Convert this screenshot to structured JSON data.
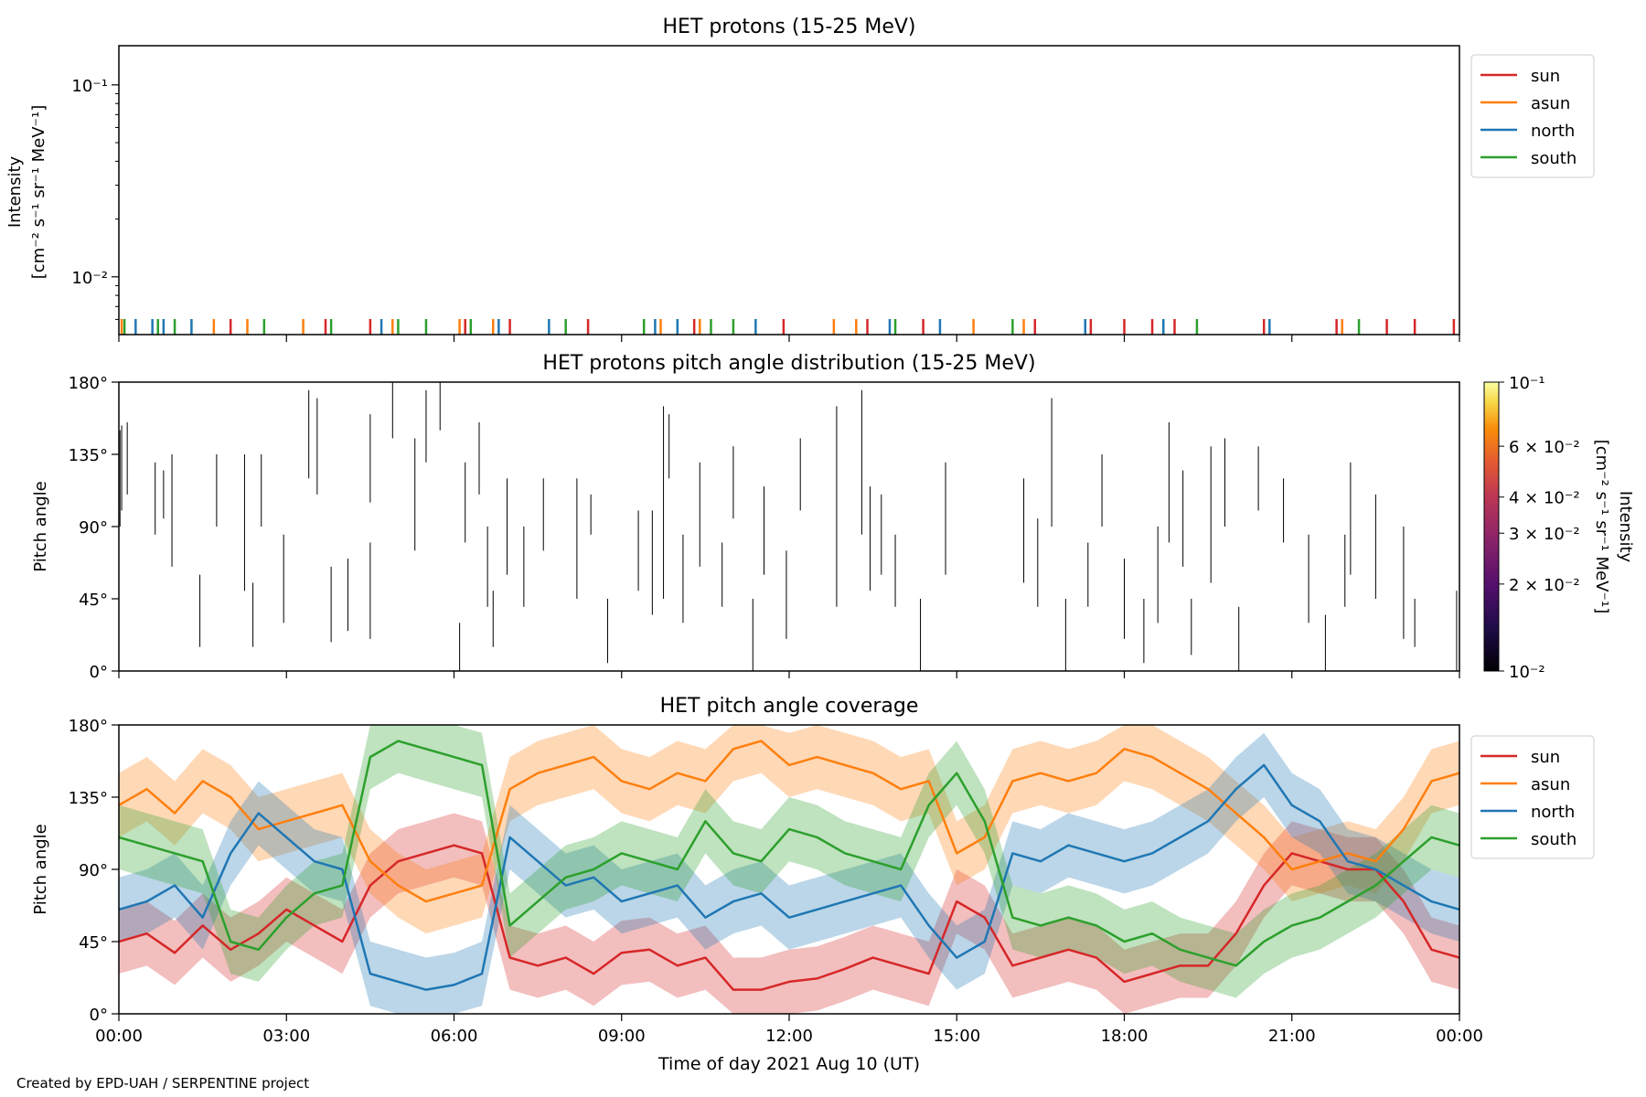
{
  "credit": "Created by EPD-UAH / SERPENTINE project",
  "colors": {
    "sun": "#d62728",
    "asun": "#ff7f0e",
    "north": "#1f77b4",
    "south": "#2ca02c"
  },
  "chart_data": [
    {
      "type": "line",
      "title": "HET protons (15-25 MeV)",
      "ylabel_line1": "Intensity",
      "ylabel_line2": "[cm⁻² s⁻¹ sr⁻¹ MeV⁻¹]",
      "yscale": "log",
      "ylim": [
        0.005,
        0.16
      ],
      "ytick_labels": [
        {
          "value": 0.01,
          "text": "10⁻²"
        },
        {
          "value": 0.1,
          "text": "10⁻¹"
        }
      ],
      "legend": [
        "sun",
        "asun",
        "north",
        "south"
      ],
      "legend_placement": "outside-right",
      "grid": false,
      "note": "sparse sampled intensities appearing as short spikes near the bottom of the axis",
      "spikes": {
        "sun": [
          2.0,
          3.7,
          4.5,
          6.2,
          7.0,
          8.4,
          10.3,
          11.9,
          13.4,
          14.4,
          16.4,
          17.4,
          18.0,
          18.5,
          18.9,
          20.5,
          21.8,
          22.7,
          23.2,
          23.9
        ],
        "asun": [
          0.05,
          1.7,
          2.3,
          3.3,
          4.9,
          6.1,
          6.7,
          9.7,
          10.4,
          12.8,
          13.2,
          15.3,
          16.2,
          21.9
        ],
        "north": [
          0.3,
          0.6,
          0.8,
          1.3,
          4.7,
          6.8,
          7.7,
          9.6,
          10.0,
          11.4,
          13.8,
          14.7,
          17.3,
          18.7,
          20.6
        ],
        "south": [
          0.1,
          0.7,
          1.0,
          2.6,
          3.8,
          5.0,
          5.5,
          6.3,
          8.0,
          9.4,
          10.6,
          11.0,
          13.9,
          16.0,
          19.3,
          22.2
        ]
      }
    },
    {
      "type": "heatmap",
      "title": "HET protons pitch angle distribution (15-25 MeV)",
      "ylabel": "Pitch angle",
      "ylim": [
        0,
        180
      ],
      "ytick_labels": [
        "0°",
        "45°",
        "90°",
        "135°",
        "180°"
      ],
      "colorbar": {
        "colormap": "inferno",
        "scale": "log",
        "range": [
          0.01,
          0.1
        ],
        "tick_labels": [
          {
            "value": 0.01,
            "text": "10⁻²"
          },
          {
            "value": 0.02,
            "text": "2 × 10⁻²"
          },
          {
            "value": 0.03,
            "text": "3 × 10⁻²"
          },
          {
            "value": 0.04,
            "text": "4 × 10⁻²"
          },
          {
            "value": 0.06,
            "text": "6 × 10⁻²"
          },
          {
            "value": 0.1,
            "text": "10⁻¹"
          }
        ],
        "label_line1": "Intensity",
        "label_line2": "[cm⁻² s⁻¹ sr⁻¹ MeV⁻¹]"
      },
      "segments": [
        [
          0.02,
          90,
          150
        ],
        [
          0.05,
          100,
          153
        ],
        [
          0.15,
          110,
          155
        ],
        [
          0.65,
          85,
          130
        ],
        [
          0.8,
          95,
          125
        ],
        [
          0.95,
          65,
          135
        ],
        [
          1.45,
          15,
          60
        ],
        [
          1.75,
          90,
          135
        ],
        [
          2.25,
          50,
          135
        ],
        [
          2.4,
          15,
          55
        ],
        [
          2.55,
          90,
          135
        ],
        [
          2.95,
          30,
          85
        ],
        [
          3.4,
          120,
          175
        ],
        [
          3.55,
          110,
          170
        ],
        [
          3.8,
          18,
          65
        ],
        [
          4.1,
          25,
          70
        ],
        [
          4.5,
          20,
          80
        ],
        [
          4.5,
          105,
          160
        ],
        [
          4.9,
          145,
          180
        ],
        [
          5.3,
          75,
          145
        ],
        [
          5.5,
          130,
          175
        ],
        [
          5.75,
          150,
          180
        ],
        [
          6.1,
          0,
          30
        ],
        [
          6.2,
          80,
          130
        ],
        [
          6.45,
          110,
          155
        ],
        [
          6.6,
          40,
          90
        ],
        [
          6.7,
          15,
          50
        ],
        [
          6.95,
          60,
          120
        ],
        [
          7.25,
          40,
          90
        ],
        [
          7.6,
          75,
          120
        ],
        [
          8.2,
          45,
          120
        ],
        [
          8.45,
          85,
          110
        ],
        [
          8.75,
          5,
          45
        ],
        [
          9.3,
          50,
          100
        ],
        [
          9.55,
          35,
          100
        ],
        [
          9.75,
          45,
          165
        ],
        [
          9.85,
          120,
          160
        ],
        [
          10.1,
          30,
          85
        ],
        [
          10.4,
          65,
          130
        ],
        [
          10.8,
          40,
          80
        ],
        [
          11.0,
          95,
          140
        ],
        [
          11.35,
          0,
          45
        ],
        [
          11.55,
          60,
          115
        ],
        [
          11.95,
          20,
          75
        ],
        [
          12.2,
          100,
          145
        ],
        [
          12.85,
          40,
          165
        ],
        [
          13.3,
          85,
          175
        ],
        [
          13.45,
          50,
          115
        ],
        [
          13.65,
          60,
          110
        ],
        [
          13.9,
          40,
          85
        ],
        [
          14.35,
          0,
          45
        ],
        [
          14.8,
          60,
          130
        ],
        [
          16.2,
          55,
          120
        ],
        [
          16.45,
          40,
          95
        ],
        [
          16.7,
          90,
          170
        ],
        [
          16.95,
          0,
          45
        ],
        [
          17.35,
          40,
          80
        ],
        [
          17.6,
          90,
          135
        ],
        [
          18.0,
          20,
          70
        ],
        [
          18.35,
          5,
          45
        ],
        [
          18.6,
          30,
          90
        ],
        [
          18.8,
          80,
          155
        ],
        [
          19.05,
          65,
          125
        ],
        [
          19.2,
          10,
          45
        ],
        [
          19.55,
          55,
          140
        ],
        [
          19.8,
          90,
          145
        ],
        [
          20.05,
          0,
          40
        ],
        [
          20.4,
          100,
          140
        ],
        [
          20.85,
          80,
          120
        ],
        [
          21.3,
          30,
          85
        ],
        [
          21.6,
          0,
          35
        ],
        [
          21.95,
          40,
          85
        ],
        [
          22.05,
          60,
          130
        ],
        [
          22.5,
          45,
          110
        ],
        [
          23.0,
          20,
          90
        ],
        [
          23.2,
          15,
          45
        ],
        [
          23.95,
          0,
          50
        ]
      ]
    },
    {
      "type": "area",
      "title": "HET pitch angle coverage",
      "ylabel": "Pitch angle",
      "xlabel": "Time of day 2021 Aug 10 (UT)",
      "ylim": [
        0,
        180
      ],
      "xlim": [
        "00:00",
        "24:00"
      ],
      "ytick_labels": [
        "0°",
        "45°",
        "90°",
        "135°",
        "180°"
      ],
      "xtick_labels": [
        "00:00",
        "03:00",
        "06:00",
        "09:00",
        "12:00",
        "15:00",
        "18:00",
        "21:00",
        "00:00"
      ],
      "legend": [
        "sun",
        "asun",
        "north",
        "south"
      ],
      "legend_placement": "outside-right",
      "band_halfwidth_deg": 20,
      "series": [
        {
          "name": "sun",
          "x_hours": [
            0,
            0.5,
            1,
            1.5,
            2,
            2.5,
            3,
            3.5,
            4,
            4.5,
            5,
            5.5,
            6,
            6.5,
            7,
            7.5,
            8,
            8.5,
            9,
            9.5,
            10,
            10.5,
            11,
            11.5,
            12,
            12.5,
            13,
            13.5,
            14,
            14.5,
            15,
            15.5,
            16,
            16.5,
            17,
            17.5,
            18,
            18.5,
            19,
            19.5,
            20,
            20.5,
            21,
            21.5,
            22,
            22.5,
            23,
            23.5,
            24
          ],
          "y": [
            45,
            50,
            38,
            55,
            40,
            50,
            65,
            55,
            45,
            80,
            95,
            100,
            105,
            100,
            35,
            30,
            35,
            25,
            38,
            40,
            30,
            35,
            15,
            15,
            20,
            22,
            28,
            35,
            30,
            25,
            70,
            60,
            30,
            35,
            40,
            35,
            20,
            25,
            30,
            30,
            50,
            80,
            100,
            95,
            90,
            90,
            70,
            40,
            35
          ]
        },
        {
          "name": "asun",
          "x_hours": [
            0,
            0.5,
            1,
            1.5,
            2,
            2.5,
            3,
            3.5,
            4,
            4.5,
            5,
            5.5,
            6,
            6.5,
            7,
            7.5,
            8,
            8.5,
            9,
            9.5,
            10,
            10.5,
            11,
            11.5,
            12,
            12.5,
            13,
            13.5,
            14,
            14.5,
            15,
            15.5,
            16,
            16.5,
            17,
            17.5,
            18,
            18.5,
            19,
            19.5,
            20,
            20.5,
            21,
            21.5,
            22,
            22.5,
            23,
            23.5,
            24
          ],
          "y": [
            130,
            140,
            125,
            145,
            135,
            115,
            120,
            125,
            130,
            95,
            80,
            70,
            75,
            80,
            140,
            150,
            155,
            160,
            145,
            140,
            150,
            145,
            165,
            170,
            155,
            160,
            155,
            150,
            140,
            145,
            100,
            110,
            145,
            150,
            145,
            150,
            165,
            160,
            150,
            140,
            125,
            110,
            90,
            95,
            100,
            95,
            115,
            145,
            150
          ]
        },
        {
          "name": "north",
          "x_hours": [
            0,
            0.5,
            1,
            1.5,
            2,
            2.5,
            3,
            3.5,
            4,
            4.5,
            5,
            5.5,
            6,
            6.5,
            7,
            7.5,
            8,
            8.5,
            9,
            9.5,
            10,
            10.5,
            11,
            11.5,
            12,
            12.5,
            13,
            13.5,
            14,
            14.5,
            15,
            15.5,
            16,
            16.5,
            17,
            17.5,
            18,
            18.5,
            19,
            19.5,
            20,
            20.5,
            21,
            21.5,
            22,
            22.5,
            23,
            23.5,
            24
          ],
          "y": [
            65,
            70,
            80,
            60,
            100,
            125,
            110,
            95,
            90,
            25,
            20,
            15,
            18,
            25,
            110,
            95,
            80,
            85,
            70,
            75,
            80,
            60,
            70,
            75,
            60,
            65,
            70,
            75,
            80,
            55,
            35,
            45,
            100,
            95,
            105,
            100,
            95,
            100,
            110,
            120,
            140,
            155,
            130,
            120,
            95,
            90,
            80,
            70,
            65
          ]
        },
        {
          "name": "south",
          "x_hours": [
            0,
            0.5,
            1,
            1.5,
            2,
            2.5,
            3,
            3.5,
            4,
            4.5,
            5,
            5.5,
            6,
            6.5,
            7,
            7.5,
            8,
            8.5,
            9,
            9.5,
            10,
            10.5,
            11,
            11.5,
            12,
            12.5,
            13,
            13.5,
            14,
            14.5,
            15,
            15.5,
            16,
            16.5,
            17,
            17.5,
            18,
            18.5,
            19,
            19.5,
            20,
            20.5,
            21,
            21.5,
            22,
            22.5,
            23,
            23.5,
            24
          ],
          "y": [
            110,
            105,
            100,
            95,
            45,
            40,
            60,
            75,
            80,
            160,
            170,
            165,
            160,
            155,
            55,
            70,
            85,
            90,
            100,
            95,
            90,
            120,
            100,
            95,
            115,
            110,
            100,
            95,
            90,
            130,
            150,
            120,
            60,
            55,
            60,
            55,
            45,
            50,
            40,
            35,
            30,
            45,
            55,
            60,
            70,
            80,
            95,
            110,
            105
          ]
        }
      ]
    }
  ]
}
